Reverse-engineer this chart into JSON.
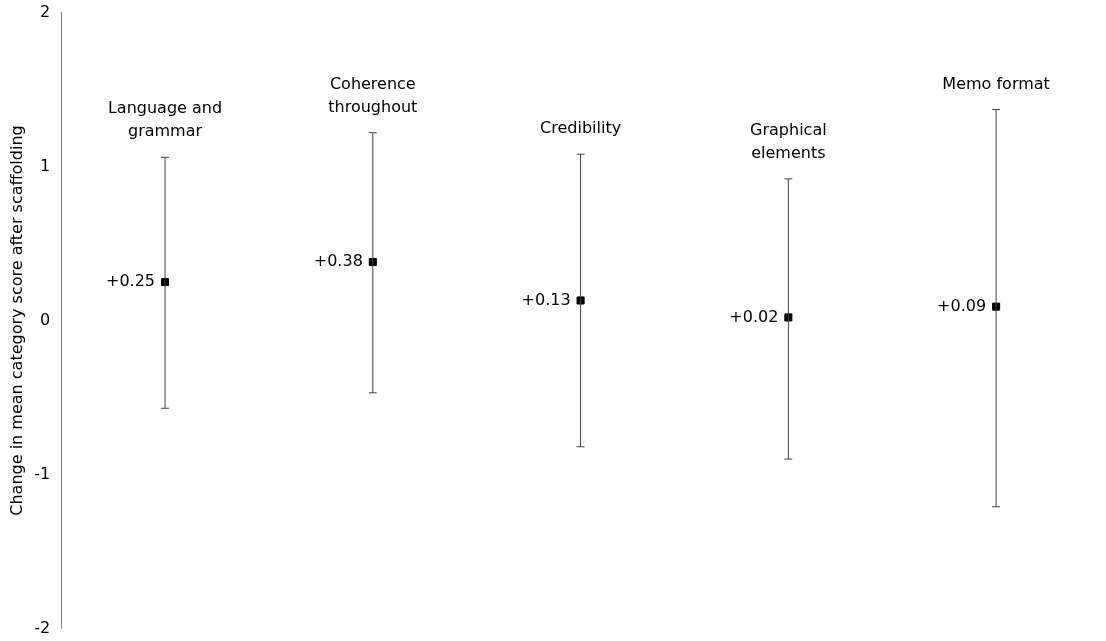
{
  "chart_data": {
    "type": "scatter",
    "ylabel": "Change in mean category score after scaffolding",
    "categories": [
      "Language and grammar",
      "Coherence throughout",
      "Credibility",
      "Graphical elements",
      "Memo format"
    ],
    "values": [
      0.25,
      0.38,
      0.13,
      0.02,
      0.09
    ],
    "value_labels": [
      "+0.25",
      "+0.38",
      "+0.13",
      "+0.02",
      "+0.09"
    ],
    "errors": [
      [
        -0.57,
        1.06
      ],
      [
        -0.47,
        1.22
      ],
      [
        -0.82,
        1.08
      ],
      [
        -0.9,
        0.92
      ],
      [
        -1.21,
        1.37
      ]
    ],
    "color": "#000000",
    "marker": "square",
    "ylim": [
      -2,
      2
    ],
    "yticks": [
      -2,
      -1,
      0,
      1,
      2
    ],
    "grid": false,
    "legend": false,
    "tick_labels": "y"
  }
}
